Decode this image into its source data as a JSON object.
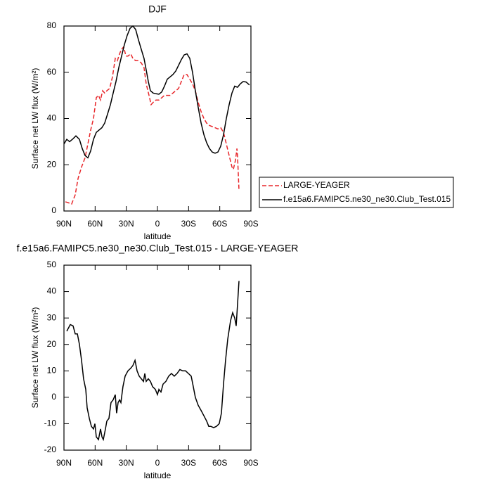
{
  "chart_data": [
    {
      "type": "line",
      "title": "DJF",
      "xlabel": "latitude",
      "ylabel": "Surface net LW flux (W/m²)",
      "xlim": [
        90,
        -90
      ],
      "xticks": [
        {
          "value": 90,
          "label": "90N"
        },
        {
          "value": 60,
          "label": "60N"
        },
        {
          "value": 30,
          "label": "30N"
        },
        0,
        {
          "value": -30,
          "label": "30S"
        },
        {
          "value": -60,
          "label": "60S"
        },
        {
          "value": -90,
          "label": "90S"
        }
      ],
      "ylim": [
        0,
        80
      ],
      "yticks": [
        0,
        20,
        40,
        60,
        80
      ],
      "legend": "outside-right",
      "series": [
        {
          "name": "LARGE-YEAGER",
          "color": "#e8262a",
          "dashed": true,
          "x": [
            88.6,
            85.3,
            82.6,
            79.2,
            76.5,
            73.1,
            69.7,
            67.0,
            64.3,
            61.6,
            58.9,
            56.8,
            54.8,
            52.8,
            50.8,
            48.7,
            46.0,
            43.3,
            40.6,
            38.6,
            36.5,
            34.5,
            32.5,
            30.4,
            28.4,
            25.7,
            23.7,
            21.0,
            18.3,
            15.5,
            12.9,
            10.8,
            8.1,
            6.1,
            4.1,
            1.4,
            -1.4,
            -4.1,
            -6.8,
            -9.5,
            -12.2,
            -14.9,
            -17.6,
            -20.3,
            -23.0,
            -25.7,
            -28.4,
            -31.1,
            -33.8,
            -36.5,
            -39.2,
            -42.0,
            -44.7,
            -47.4,
            -50.1,
            -52.8,
            -55.5,
            -58.2,
            -60.9,
            -63.6,
            -66.3,
            -69.0,
            -71.7,
            -73.1,
            -75.1,
            -76.5,
            -77.1,
            -78.5
          ],
          "values": [
            4,
            3.5,
            3,
            7,
            14,
            19,
            23,
            29,
            35,
            40,
            49,
            50,
            48,
            52,
            51,
            52,
            53,
            58,
            66,
            65,
            68,
            70,
            71,
            67,
            67,
            68,
            66,
            65,
            65,
            64,
            62,
            55,
            50,
            46,
            47,
            48,
            48,
            49,
            50,
            50,
            50,
            51,
            52,
            53,
            56,
            59,
            59,
            57,
            55,
            52,
            47,
            43,
            40,
            38,
            37,
            36.5,
            36,
            35.5,
            36,
            34,
            29,
            24,
            19,
            18,
            22,
            27,
            24,
            9
          ]
        },
        {
          "name": "f.e15a6.FAMIPC5.ne30_ne30.Club_Test.015",
          "color": "#000000",
          "dashed": false,
          "x": [
            90,
            87.3,
            84.6,
            81.9,
            78.5,
            75.1,
            72.4,
            69.7,
            67.0,
            64.3,
            61.6,
            58.9,
            56.2,
            53.5,
            50.8,
            48.0,
            45.3,
            42.6,
            39.9,
            37.2,
            34.5,
            31.8,
            29.1,
            26.4,
            23.7,
            21.0,
            18.3,
            15.6,
            12.9,
            10.8,
            8.8,
            6.8,
            4.1,
            1.4,
            -1.4,
            -4.1,
            -6.8,
            -9.5,
            -12.2,
            -14.9,
            -17.6,
            -20.3,
            -23.0,
            -25.7,
            -28.4,
            -31.1,
            -33.8,
            -36.5,
            -39.2,
            -42.0,
            -44.7,
            -47.4,
            -50.1,
            -52.8,
            -55.5,
            -58.2,
            -60.9,
            -63.6,
            -66.3,
            -69.0,
            -71.7,
            -74.4,
            -77.1,
            -79.8,
            -82.5,
            -85.3,
            -88.6
          ],
          "values": [
            29,
            31,
            30,
            31,
            32.5,
            31,
            27,
            24,
            23,
            26,
            31,
            34,
            35,
            36,
            38,
            42,
            46,
            51,
            56,
            62,
            67,
            72,
            76,
            79,
            80,
            78.5,
            74,
            70,
            66,
            61,
            56,
            52,
            51,
            50.7,
            50.5,
            51.5,
            54,
            57,
            58,
            59,
            60.5,
            63,
            65.5,
            67.5,
            68,
            66,
            60,
            52,
            45,
            38,
            33,
            29.5,
            27,
            25.5,
            25,
            25.5,
            28,
            33,
            40,
            46,
            51,
            54,
            53.5,
            55,
            56,
            55.8,
            54.5
          ]
        }
      ]
    },
    {
      "type": "line",
      "title": "f.e15a6.FAMIPC5.ne30_ne30.Club_Test.015 - LARGE-YEAGER",
      "xlabel": "latitude",
      "ylabel": "Surface net LW flux (W/m²)",
      "xlim": [
        90,
        -90
      ],
      "xticks": [
        {
          "value": 90,
          "label": "90N"
        },
        {
          "value": 60,
          "label": "60N"
        },
        {
          "value": 30,
          "label": "30N"
        },
        0,
        {
          "value": -30,
          "label": "30S"
        },
        {
          "value": -60,
          "label": "60S"
        },
        {
          "value": -90,
          "label": "90S"
        }
      ],
      "ylim": [
        -20,
        50
      ],
      "yticks": [
        -20,
        -10,
        0,
        10,
        20,
        30,
        40,
        50
      ],
      "color": "#000000",
      "x": [
        87.3,
        83.9,
        81.2,
        79.2,
        77.1,
        75.1,
        73.1,
        71.1,
        69.0,
        67.7,
        65.6,
        63.6,
        61.6,
        60.2,
        58.9,
        56.8,
        54.8,
        53.4,
        52.1,
        50.1,
        48.7,
        46.7,
        44.7,
        42.7,
        40.6,
        39.3,
        37.9,
        36.5,
        35.2,
        33.2,
        31.1,
        28.4,
        25.7,
        23.7,
        21.6,
        19.6,
        17.6,
        15.5,
        13.5,
        12.2,
        10.8,
        8.8,
        6.8,
        4.7,
        2.0,
        0,
        -1.4,
        -3.4,
        -5.4,
        -8.1,
        -10.8,
        -13.5,
        -16.2,
        -18.9,
        -21.6,
        -24.3,
        -27.1,
        -29.8,
        -32.5,
        -34.5,
        -36.5,
        -39.2,
        -42.0,
        -44.7,
        -47.4,
        -49.4,
        -51.4,
        -54.1,
        -56.8,
        -59.5,
        -61.6,
        -63.6,
        -65.6,
        -67.7,
        -70.4,
        -72.4,
        -74.4,
        -75.8,
        -77.1,
        -78.5
      ],
      "values": [
        25,
        27.5,
        27,
        24,
        24,
        20,
        14,
        7,
        3,
        -4,
        -8,
        -11,
        -12,
        -10,
        -15,
        -16,
        -12,
        -15,
        -16,
        -12,
        -9,
        -8,
        -2,
        -1,
        1,
        -6,
        -2,
        -1,
        -2,
        4,
        8,
        10,
        11,
        12,
        14,
        10,
        8,
        7,
        6,
        9,
        6,
        7,
        6,
        4,
        3,
        1,
        3,
        2,
        5,
        6,
        8,
        9,
        8,
        9,
        10.5,
        10,
        10,
        9,
        8,
        4,
        0,
        -3,
        -5,
        -7,
        -9,
        -11,
        -11,
        -11.5,
        -11,
        -10,
        -6,
        5,
        14,
        22,
        29,
        32,
        30,
        27,
        35,
        44
      ]
    }
  ]
}
